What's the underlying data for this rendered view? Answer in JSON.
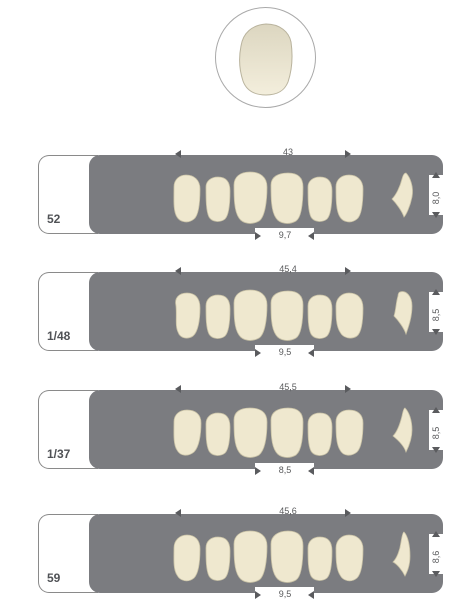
{
  "colors": {
    "panel": "#7b7c80",
    "tooth": "#efe8cf",
    "border": "#8a8a8a"
  },
  "hero": {
    "icon": "tooth-front-icon"
  },
  "sets": [
    {
      "model": "52",
      "width_total": "43",
      "central_width": "9,7",
      "height": "8,0"
    },
    {
      "model": "1/48",
      "width_total": "45,4",
      "central_width": "9,5",
      "height": "8,5"
    },
    {
      "model": "1/37",
      "width_total": "45,5",
      "central_width": "8,5",
      "height": "8,5"
    },
    {
      "model": "59",
      "width_total": "45,6",
      "central_width": "9,5",
      "height": "8,6"
    }
  ]
}
